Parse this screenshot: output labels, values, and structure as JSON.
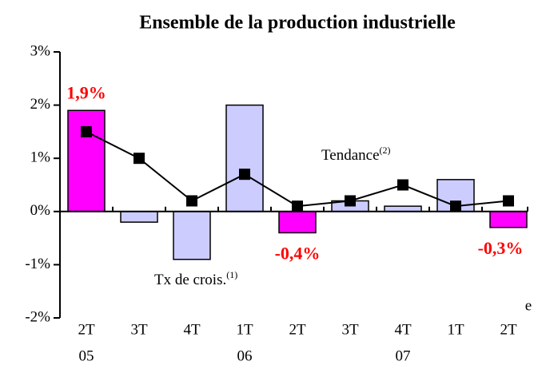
{
  "chart_data": {
    "type": "bar",
    "title": "Ensemble de la production industrielle",
    "categories": [
      "2T",
      "3T",
      "4T",
      "1T",
      "2T",
      "3T",
      "4T",
      "1T",
      "2T"
    ],
    "category_years": [
      "05",
      null,
      null,
      "06",
      null,
      null,
      "07",
      null,
      null
    ],
    "estimate_mark": "e",
    "ylim": [
      -2,
      3
    ],
    "yticks": [
      {
        "value": -2,
        "label": "-2%"
      },
      {
        "value": -1,
        "label": "-1%"
      },
      {
        "value": 0,
        "label": "0%"
      },
      {
        "value": 1,
        "label": "1%"
      },
      {
        "value": 2,
        "label": "2%"
      },
      {
        "value": 3,
        "label": "3%"
      }
    ],
    "series": [
      {
        "name": "Tx de crois.",
        "note": "(1)",
        "type": "bar",
        "colors": [
          "#ff00ff",
          "#ccccff",
          "#ccccff",
          "#ccccff",
          "#ff00ff",
          "#ccccff",
          "#ccccff",
          "#ccccff",
          "#ff00ff"
        ],
        "values": [
          1.9,
          -0.2,
          -0.9,
          2.0,
          -0.4,
          0.2,
          0.1,
          0.6,
          -0.3
        ],
        "value_labels": [
          "1,9%",
          null,
          null,
          null,
          "-0,4%",
          null,
          null,
          null,
          "-0,3%"
        ]
      },
      {
        "name": "Tendance",
        "note": "(2)",
        "type": "line",
        "color": "#000000",
        "values": [
          1.5,
          1.0,
          0.2,
          0.7,
          0.1,
          0.2,
          0.5,
          0.1,
          0.2
        ]
      }
    ]
  }
}
